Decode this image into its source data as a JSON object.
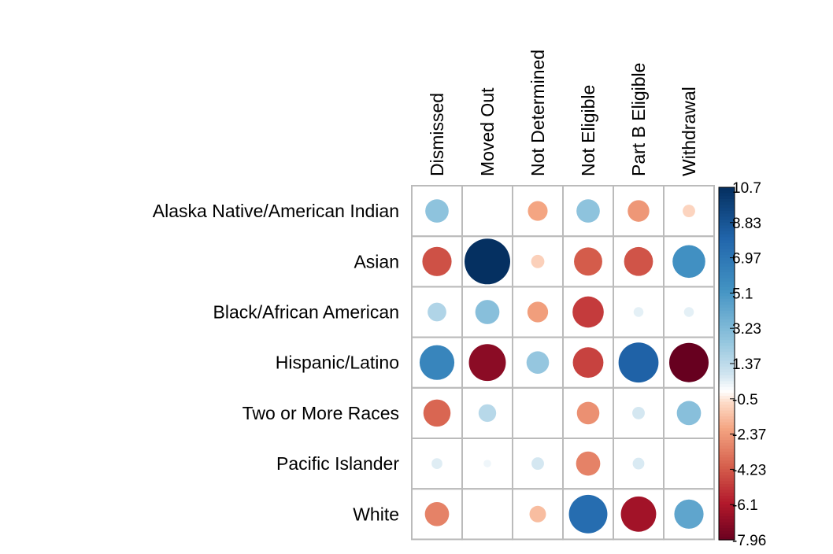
{
  "chart_data": {
    "type": "heatmap",
    "rows": [
      "Alaska Native/American Indian",
      "Asian",
      "Black/African American",
      "Hispanic/Latino",
      "Two or More Races",
      "Pacific Islander",
      "White"
    ],
    "columns": [
      "Dismissed",
      "Moved Out",
      "Not Determined",
      "Not Eligible",
      "Part B Eligible",
      "Withdrawal"
    ],
    "values": [
      [
        2.8,
        0.0,
        -2.0,
        2.8,
        -2.4,
        -0.8
      ],
      [
        -4.4,
        10.7,
        -0.9,
        -4.1,
        -4.3,
        5.5
      ],
      [
        1.8,
        3.0,
        -2.2,
        -5.0,
        0.5,
        0.5
      ],
      [
        6.2,
        -7.0,
        2.6,
        -4.8,
        8.2,
        -7.96
      ],
      [
        -3.8,
        1.6,
        0.0,
        -2.6,
        0.8,
        3.0
      ],
      [
        0.6,
        0.3,
        0.8,
        -3.0,
        0.7,
        0.0
      ],
      [
        -3.0,
        0.0,
        -1.4,
        7.6,
        -6.4,
        4.4
      ]
    ],
    "value_range": [
      -7.96,
      10.7
    ],
    "colorbar_ticks": [
      "10.7",
      "8.83",
      "6.97",
      "5.1",
      "3.23",
      "1.37",
      "-0.5",
      "-2.37",
      "-4.23",
      "-6.1",
      "-7.96"
    ],
    "grid": true,
    "legend_placement": "right"
  },
  "colors": {
    "high": "#053061",
    "mid": "#ffffff",
    "low": "#67001f",
    "grid": "#bbbbbb"
  }
}
